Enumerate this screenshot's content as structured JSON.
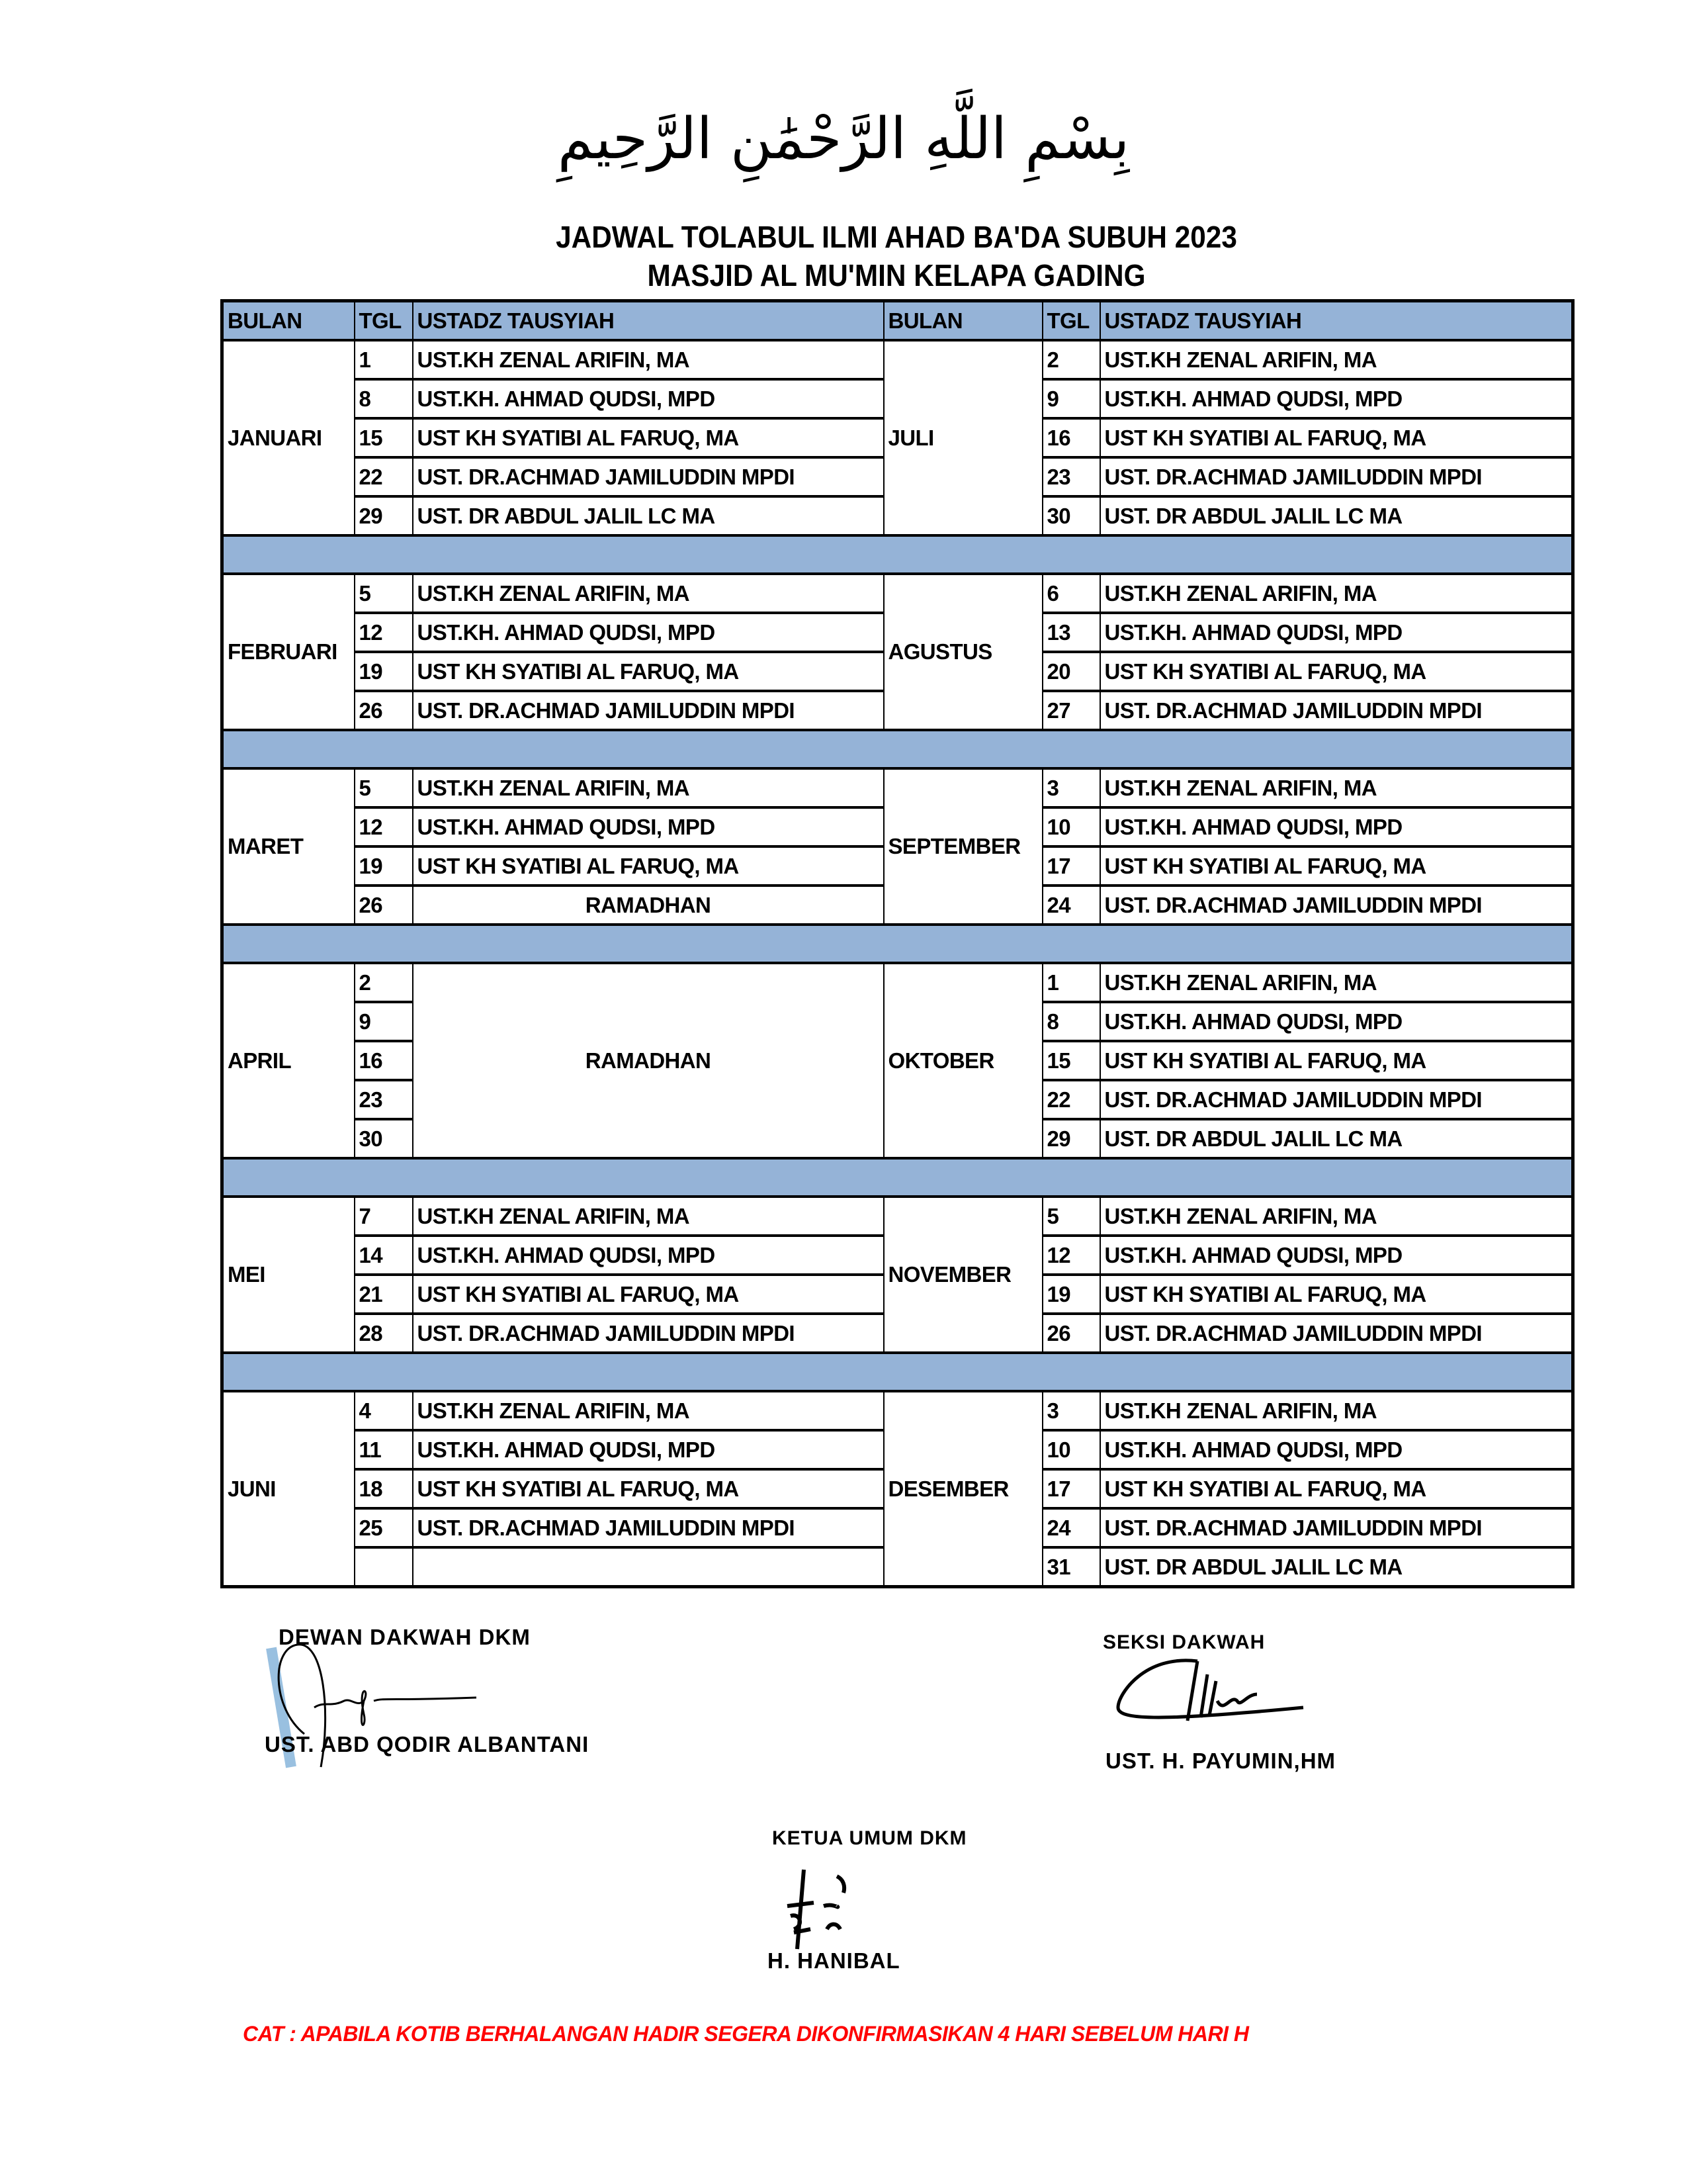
{
  "header": {
    "bismillah": "بِسْمِ اللَّهِ الرَّحْمَٰنِ الرَّحِيمِ",
    "title_line1": "JADWAL TOLABUL ILMI   AHAD  BA'DA SUBUH 2023",
    "title_line2": "MASJID AL MU'MIN KELAPA GADING"
  },
  "table": {
    "columns": [
      "BULAN",
      "TGL",
      "USTADZ TAUSYIAH",
      "BULAN",
      "TGL",
      "USTADZ TAUSYIAH"
    ],
    "header_color": "#95b3d7",
    "blocks": [
      {
        "left": {
          "month": "JANUARI",
          "rows": [
            {
              "tgl": "1",
              "ustadz": "UST.KH ZENAL ARIFIN, MA"
            },
            {
              "tgl": "8",
              "ustadz": "UST.KH. AHMAD QUDSI, MPD"
            },
            {
              "tgl": "15",
              "ustadz": "UST KH SYATIBI  AL FARUQ, MA"
            },
            {
              "tgl": "22",
              "ustadz": "UST. DR.ACHMAD JAMILUDDIN MPDI"
            },
            {
              "tgl": "29",
              "ustadz": "UST. DR ABDUL JALIL LC MA"
            }
          ]
        },
        "right": {
          "month": "JULI",
          "rows": [
            {
              "tgl": "2",
              "ustadz": "UST.KH ZENAL ARIFIN, MA"
            },
            {
              "tgl": "9",
              "ustadz": "UST.KH. AHMAD QUDSI, MPD"
            },
            {
              "tgl": "16",
              "ustadz": "UST KH SYATIBI  AL FARUQ, MA"
            },
            {
              "tgl": "23",
              "ustadz": "UST. DR.ACHMAD JAMILUDDIN MPDI"
            },
            {
              "tgl": "30",
              "ustadz": "UST. DR ABDUL JALIL LC MA"
            }
          ]
        }
      },
      {
        "left": {
          "month": "FEBRUARI",
          "rows": [
            {
              "tgl": "5",
              "ustadz": "UST.KH ZENAL ARIFIN, MA"
            },
            {
              "tgl": "12",
              "ustadz": "UST.KH. AHMAD QUDSI, MPD"
            },
            {
              "tgl": "19",
              "ustadz": "UST KH SYATIBI  AL FARUQ, MA"
            },
            {
              "tgl": "26",
              "ustadz": "UST. DR.ACHMAD JAMILUDDIN MPDI"
            }
          ]
        },
        "right": {
          "month": "AGUSTUS",
          "rows": [
            {
              "tgl": "6",
              "ustadz": "UST.KH ZENAL ARIFIN, MA"
            },
            {
              "tgl": "13",
              "ustadz": "UST.KH. AHMAD QUDSI, MPD"
            },
            {
              "tgl": "20",
              "ustadz": "UST KH SYATIBI  AL FARUQ, MA"
            },
            {
              "tgl": "27",
              "ustadz": "UST. DR.ACHMAD JAMILUDDIN MPDI"
            }
          ]
        }
      },
      {
        "left": {
          "month": "MARET",
          "rows": [
            {
              "tgl": "5",
              "ustadz": "UST.KH ZENAL ARIFIN, MA"
            },
            {
              "tgl": "12",
              "ustadz": "UST.KH. AHMAD QUDSI, MPD"
            },
            {
              "tgl": "19",
              "ustadz": "UST KH SYATIBI  AL FARUQ, MA"
            },
            {
              "tgl": "26",
              "ustadz": "RAMADHAN"
            }
          ]
        },
        "right": {
          "month": "SEPTEMBER",
          "rows": [
            {
              "tgl": "3",
              "ustadz": "UST.KH ZENAL ARIFIN, MA"
            },
            {
              "tgl": "10",
              "ustadz": "UST.KH. AHMAD QUDSI, MPD"
            },
            {
              "tgl": "17",
              "ustadz": "UST KH SYATIBI  AL FARUQ, MA"
            },
            {
              "tgl": "24",
              "ustadz": "UST. DR.ACHMAD JAMILUDDIN MPDI"
            }
          ]
        }
      },
      {
        "left": {
          "month": "APRIL",
          "merged_ustadz": "RAMADHAN",
          "rows": [
            {
              "tgl": "2"
            },
            {
              "tgl": "9"
            },
            {
              "tgl": "16"
            },
            {
              "tgl": "23"
            },
            {
              "tgl": "30"
            }
          ]
        },
        "right": {
          "month": "OKTOBER",
          "rows": [
            {
              "tgl": "1",
              "ustadz": "UST.KH ZENAL ARIFIN, MA"
            },
            {
              "tgl": "8",
              "ustadz": "UST.KH. AHMAD QUDSI, MPD"
            },
            {
              "tgl": "15",
              "ustadz": "UST KH SYATIBI  AL FARUQ, MA"
            },
            {
              "tgl": "22",
              "ustadz": "UST. DR.ACHMAD JAMILUDDIN MPDI"
            },
            {
              "tgl": "29",
              "ustadz": "UST. DR ABDUL JALIL LC MA"
            }
          ]
        }
      },
      {
        "left": {
          "month": "MEI",
          "rows": [
            {
              "tgl": "7",
              "ustadz": "UST.KH ZENAL ARIFIN, MA"
            },
            {
              "tgl": "14",
              "ustadz": "UST.KH. AHMAD QUDSI, MPD"
            },
            {
              "tgl": "21",
              "ustadz": "UST KH SYATIBI  AL FARUQ, MA"
            },
            {
              "tgl": "28",
              "ustadz": "UST. DR.ACHMAD JAMILUDDIN MPDI"
            }
          ]
        },
        "right": {
          "month": "NOVEMBER",
          "rows": [
            {
              "tgl": "5",
              "ustadz": "UST.KH ZENAL ARIFIN, MA"
            },
            {
              "tgl": "12",
              "ustadz": "UST.KH. AHMAD QUDSI, MPD"
            },
            {
              "tgl": "19",
              "ustadz": "UST KH SYATIBI  AL FARUQ, MA"
            },
            {
              "tgl": "26",
              "ustadz": "UST. DR.ACHMAD JAMILUDDIN MPDI"
            }
          ]
        }
      },
      {
        "left": {
          "month": "JUNI",
          "rows": [
            {
              "tgl": "4",
              "ustadz": "UST.KH ZENAL ARIFIN, MA"
            },
            {
              "tgl": "11",
              "ustadz": "UST.KH. AHMAD QUDSI, MPD"
            },
            {
              "tgl": "18",
              "ustadz": "UST KH SYATIBI  AL FARUQ, MA"
            },
            {
              "tgl": "25",
              "ustadz": "UST. DR.ACHMAD JAMILUDDIN MPDI"
            },
            {
              "tgl": "",
              "ustadz": ""
            }
          ]
        },
        "right": {
          "month": "DESEMBER",
          "rows": [
            {
              "tgl": "3",
              "ustadz": "UST.KH ZENAL ARIFIN, MA"
            },
            {
              "tgl": "10",
              "ustadz": "UST.KH. AHMAD QUDSI, MPD"
            },
            {
              "tgl": "17",
              "ustadz": "UST KH SYATIBI  AL FARUQ, MA"
            },
            {
              "tgl": "24",
              "ustadz": "UST. DR.ACHMAD JAMILUDDIN MPDI"
            },
            {
              "tgl": "31",
              "ustadz": "UST. DR ABDUL JALIL LC MA"
            }
          ]
        }
      }
    ]
  },
  "signatures": {
    "dewan": {
      "role": "DEWAN DAKWAH DKM",
      "name": "UST. ABD QODIR ALBANTANI"
    },
    "seksi": {
      "role": "SEKSI DAKWAH",
      "name": "UST. H. PAYUMIN,HM"
    },
    "ketua": {
      "role": "KETUA UMUM DKM",
      "name": "H. HANIBAL"
    }
  },
  "note": {
    "text": "CAT : APABILA KOTIB BERHALANGAN HADIR SEGERA DIKONFIRMASIKAN 4 HARI SEBELUM HARI H",
    "color": "#ff0000"
  }
}
